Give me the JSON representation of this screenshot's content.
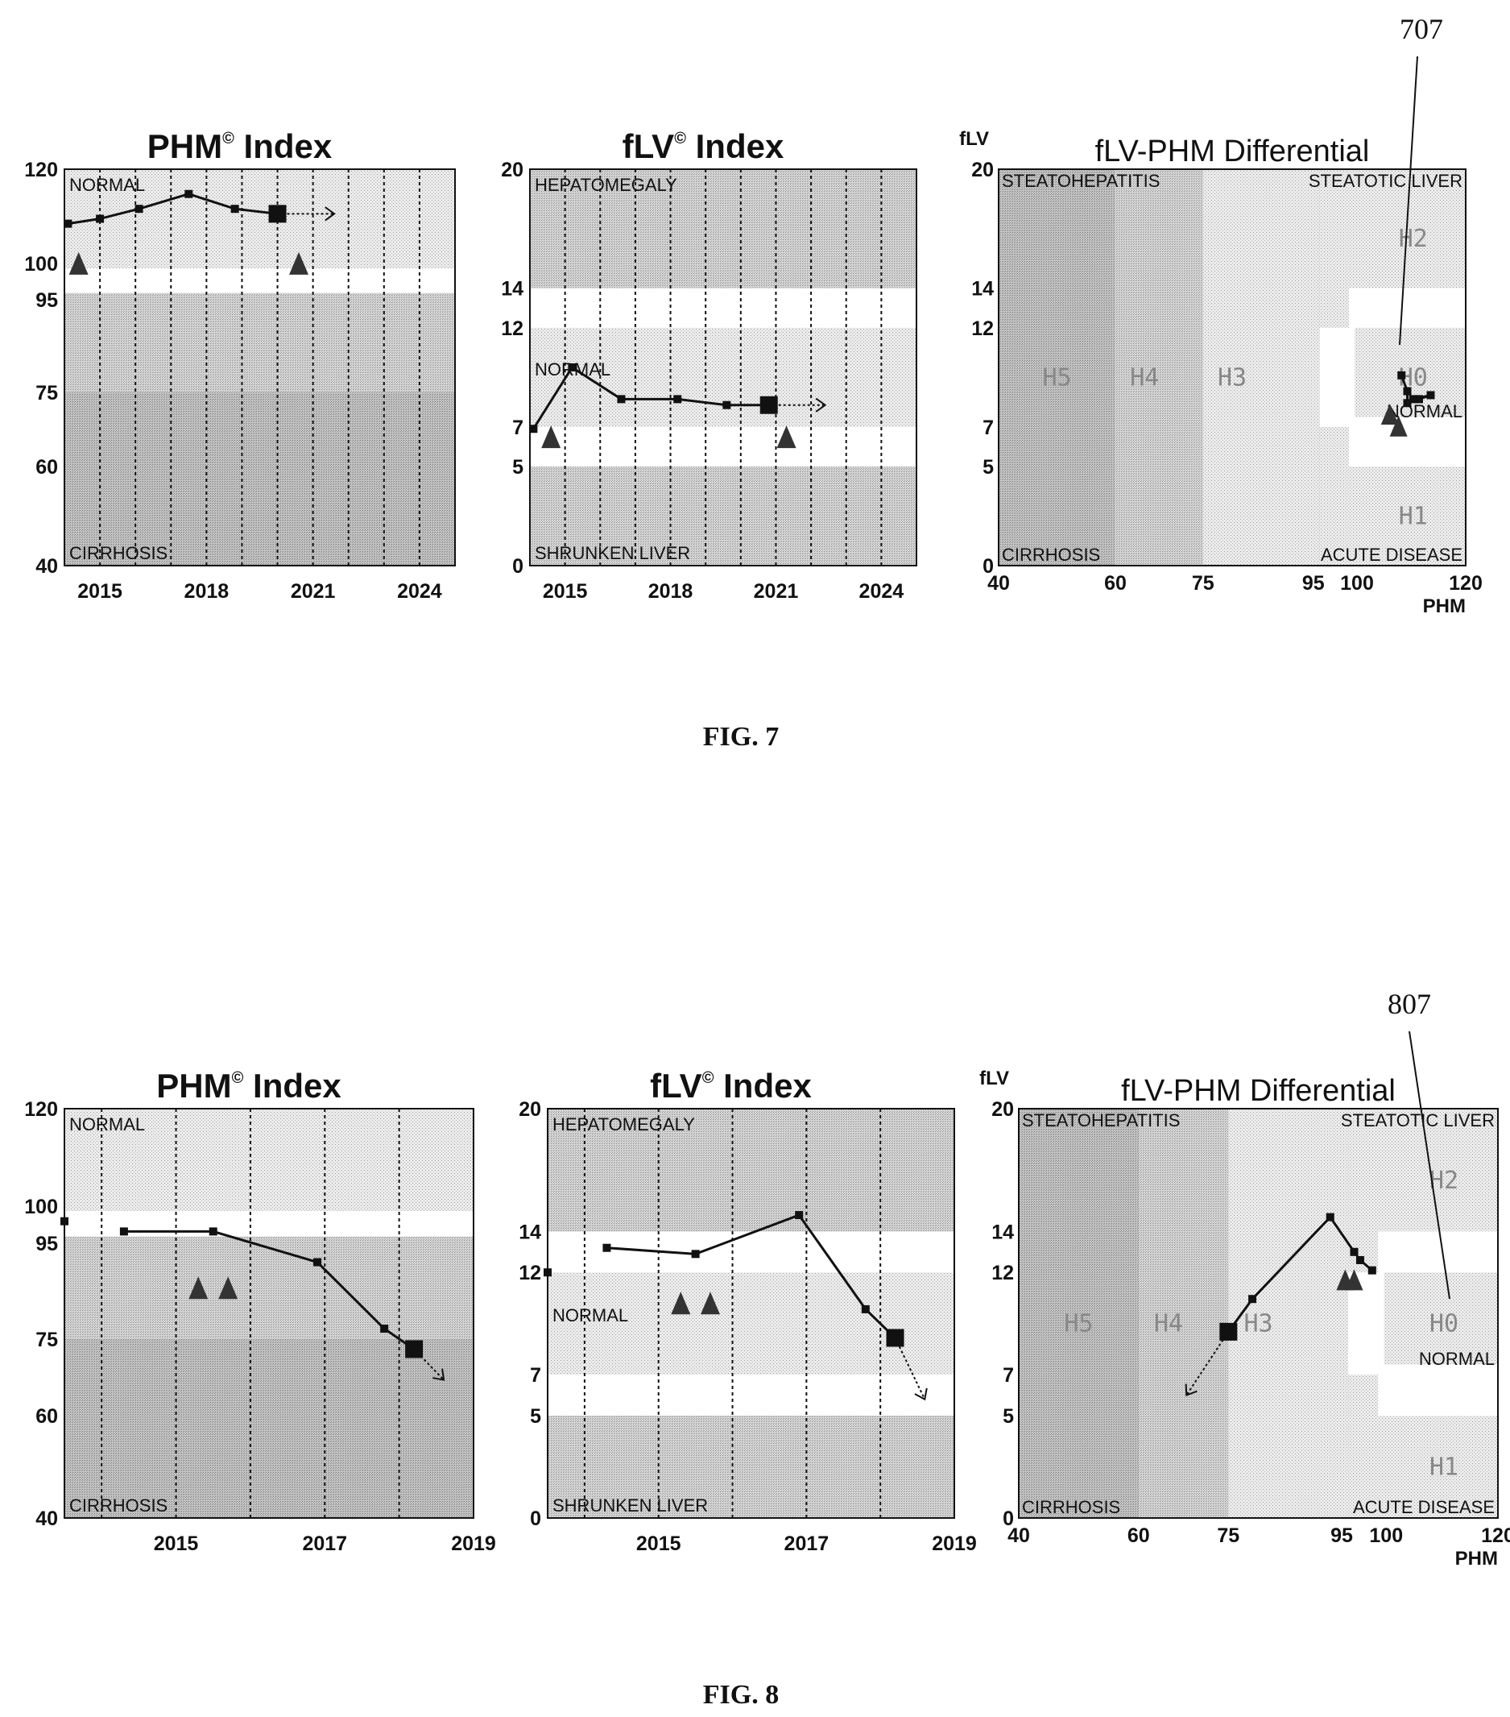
{
  "figures": [
    {
      "caption": "FIG. 7",
      "reference_label": "707",
      "charts": [
        {
          "title": "PHM",
          "title_suffix": "Index",
          "superscript": "©",
          "zone_top": "NORMAL",
          "zone_bottom": "CIRRHOSIS",
          "y_ticks": [
            "120",
            "100",
            "95",
            "75",
            "60",
            "40"
          ],
          "x_ticks": [
            "2015",
            "2018",
            "2021",
            "2024"
          ]
        },
        {
          "title": "fLV",
          "title_suffix": "Index",
          "superscript": "©",
          "zone_top": "HEPATOMEGALY",
          "zone_mid": "NORMAL",
          "zone_bottom": "SHRUNKEN LIVER",
          "y_ticks": [
            "20",
            "14",
            "12",
            "7",
            "5",
            "0"
          ],
          "x_ticks": [
            "2015",
            "2018",
            "2021",
            "2024"
          ]
        },
        {
          "title": "fLV-PHM Differential",
          "y_axis_label": "fLV",
          "x_axis_label": "PHM",
          "corner_tl": "STEATOHEPATITIS",
          "corner_tr": "STEATOTIC LIVER",
          "corner_bl": "CIRRHOSIS",
          "corner_br": "ACUTE DISEASE",
          "normal_label": "NORMAL",
          "regions": [
            "H5",
            "H4",
            "H3",
            "H0",
            "H2",
            "H1"
          ],
          "y_ticks": [
            "20",
            "14",
            "12",
            "7",
            "5",
            "0"
          ],
          "x_ticks": [
            "40",
            "60",
            "75",
            "95",
            "100",
            "120"
          ]
        }
      ]
    },
    {
      "caption": "FIG. 8",
      "reference_label": "807",
      "charts": [
        {
          "title": "PHM",
          "title_suffix": "Index",
          "superscript": "©",
          "zone_top": "NORMAL",
          "zone_bottom": "CIRRHOSIS",
          "y_ticks": [
            "120",
            "100",
            "95",
            "75",
            "60",
            "40"
          ],
          "x_ticks": [
            "2015",
            "2017",
            "2019"
          ]
        },
        {
          "title": "fLV",
          "title_suffix": "Index",
          "superscript": "©",
          "zone_top": "HEPATOMEGALY",
          "zone_mid": "NORMAL",
          "zone_bottom": "SHRUNKEN LIVER",
          "y_ticks": [
            "20",
            "14",
            "12",
            "7",
            "5",
            "0"
          ],
          "x_ticks": [
            "2015",
            "2017",
            "2019"
          ]
        },
        {
          "title": "fLV-PHM Differential",
          "y_axis_label": "fLV",
          "x_axis_label": "PHM",
          "corner_tl": "STEATOHEPATITIS",
          "corner_tr": "STEATOTIC LIVER",
          "corner_bl": "CIRRHOSIS",
          "corner_br": "ACUTE DISEASE",
          "normal_label": "NORMAL",
          "regions": [
            "H5",
            "H4",
            "H3",
            "H0",
            "H2",
            "H1"
          ],
          "y_ticks": [
            "20",
            "14",
            "12",
            "7",
            "5",
            "0"
          ],
          "x_ticks": [
            "40",
            "60",
            "75",
            "95",
            "100",
            "120"
          ]
        }
      ]
    }
  ],
  "chart_data": [
    {
      "figure": "FIG. 7",
      "type": "line",
      "title": "PHM© Index",
      "ylim": [
        40,
        120
      ],
      "y_ticks": [
        120,
        100,
        95,
        75,
        60,
        40
      ],
      "xlim": [
        2014.0,
        2025.0
      ],
      "x_ticks": [
        2015,
        2018,
        2021,
        2024
      ],
      "bands": [
        {
          "label": "NORMAL",
          "range": [
            95,
            120
          ]
        },
        {
          "label": "CIRRHOSIS",
          "range": [
            40,
            95
          ]
        }
      ],
      "series": [
        {
          "x": [
            2014.1,
            2015.0,
            2016.1,
            2017.5,
            2018.8,
            2020.0
          ],
          "y": [
            109,
            110,
            112,
            115,
            112,
            111
          ]
        }
      ],
      "forecast": {
        "x": [
          2020.0,
          2021.6
        ],
        "y": [
          111,
          111
        ]
      },
      "markers": {
        "x": [
          2014.4,
          2020.6
        ],
        "y": [
          101,
          101
        ]
      }
    },
    {
      "figure": "FIG. 7",
      "type": "line",
      "title": "fLV© Index",
      "ylim": [
        0,
        20
      ],
      "y_ticks": [
        20,
        14,
        12,
        7,
        5,
        0
      ],
      "xlim": [
        2014.0,
        2025.0
      ],
      "x_ticks": [
        2015,
        2018,
        2021,
        2024
      ],
      "bands": [
        {
          "label": "HEPATOMEGALY",
          "range": [
            14,
            20
          ]
        },
        {
          "label": "NORMAL",
          "range": [
            5,
            14
          ]
        },
        {
          "label": "SHRUNKEN LIVER",
          "range": [
            0,
            5
          ]
        }
      ],
      "series": [
        {
          "x": [
            2014.1,
            2015.2,
            2016.6,
            2018.2,
            2019.6,
            2020.8
          ],
          "y": [
            6.9,
            10.0,
            8.4,
            8.4,
            8.1,
            8.1
          ]
        }
      ],
      "forecast": {
        "x": [
          2020.8,
          2022.4
        ],
        "y": [
          8.1,
          8.1
        ]
      },
      "markers": {
        "x": [
          2014.6,
          2021.3
        ],
        "y": [
          6.5,
          6.5
        ]
      }
    },
    {
      "figure": "FIG. 7",
      "type": "scatter",
      "title": "fLV-PHM Differential",
      "xlabel": "PHM",
      "ylabel": "fLV",
      "xlim": [
        40,
        120
      ],
      "ylim": [
        0,
        20
      ],
      "x_ticks": [
        40,
        60,
        75,
        95,
        100,
        120
      ],
      "y_ticks": [
        20,
        14,
        12,
        7,
        5,
        0
      ],
      "series": [
        {
          "x": [
            109,
            110,
            110,
            111,
            114,
            112
          ],
          "y": [
            9.6,
            8.8,
            8.2,
            8.4,
            8.6,
            8.4
          ]
        }
      ],
      "markers": {
        "x": [
          107,
          108.5
        ],
        "y": [
          7.6,
          7.0
        ]
      }
    },
    {
      "figure": "FIG. 8",
      "type": "line",
      "title": "PHM© Index",
      "ylim": [
        40,
        120
      ],
      "y_ticks": [
        120,
        100,
        95,
        75,
        60,
        40
      ],
      "xlim": [
        2013.5,
        2019.0
      ],
      "x_ticks": [
        2015,
        2017,
        2019
      ],
      "bands": [
        {
          "label": "NORMAL",
          "range": [
            95,
            120
          ]
        },
        {
          "label": "CIRRHOSIS",
          "range": [
            40,
            95
          ]
        }
      ],
      "series": [
        {
          "x": [
            2014.3,
            2015.5,
            2016.9,
            2017.8,
            2018.2
          ],
          "y": [
            96,
            96,
            90,
            77,
            73
          ]
        }
      ],
      "isolated_point": {
        "x": 2013.5,
        "y": 98
      },
      "forecast": {
        "x": [
          2018.2,
          2018.6
        ],
        "y": [
          73,
          67
        ]
      },
      "markers": {
        "x": [
          2015.3,
          2015.7
        ],
        "y": [
          85,
          85
        ]
      }
    },
    {
      "figure": "FIG. 8",
      "type": "line",
      "title": "fLV© Index",
      "ylim": [
        0,
        20
      ],
      "y_ticks": [
        20,
        14,
        12,
        7,
        5,
        0
      ],
      "xlim": [
        2013.5,
        2019.0
      ],
      "x_ticks": [
        2015,
        2017,
        2019
      ],
      "bands": [
        {
          "label": "HEPATOMEGALY",
          "range": [
            14,
            20
          ]
        },
        {
          "label": "NORMAL",
          "range": [
            5,
            14
          ]
        },
        {
          "label": "SHRUNKEN LIVER",
          "range": [
            0,
            5
          ]
        }
      ],
      "series": [
        {
          "x": [
            2014.3,
            2015.5,
            2016.9,
            2017.8,
            2018.2
          ],
          "y": [
            13.2,
            12.9,
            14.8,
            10.2,
            8.8
          ]
        }
      ],
      "isolated_point": {
        "x": 2013.5,
        "y": 12.0
      },
      "forecast": {
        "x": [
          2018.2,
          2018.6
        ],
        "y": [
          8.8,
          5.8
        ]
      },
      "markers": {
        "x": [
          2015.3,
          2015.7
        ],
        "y": [
          10.5,
          10.5
        ]
      }
    },
    {
      "figure": "FIG. 8",
      "type": "scatter",
      "title": "fLV-PHM Differential",
      "xlabel": "PHM",
      "ylabel": "fLV",
      "xlim": [
        40,
        120
      ],
      "ylim": [
        0,
        20
      ],
      "x_ticks": [
        40,
        60,
        75,
        95,
        100,
        120
      ],
      "y_ticks": [
        20,
        14,
        12,
        7,
        5,
        0
      ],
      "series": [
        {
          "x": [
            75,
            79,
            92,
            96,
            97,
            99
          ],
          "y": [
            9.1,
            10.7,
            14.7,
            13.0,
            12.6,
            12.1
          ]
        }
      ],
      "forecast": {
        "x": [
          75,
          68
        ],
        "y": [
          9.1,
          6.0
        ]
      },
      "markers": {
        "x": [
          94.5,
          96
        ],
        "y": [
          11.6,
          11.6
        ]
      }
    }
  ]
}
